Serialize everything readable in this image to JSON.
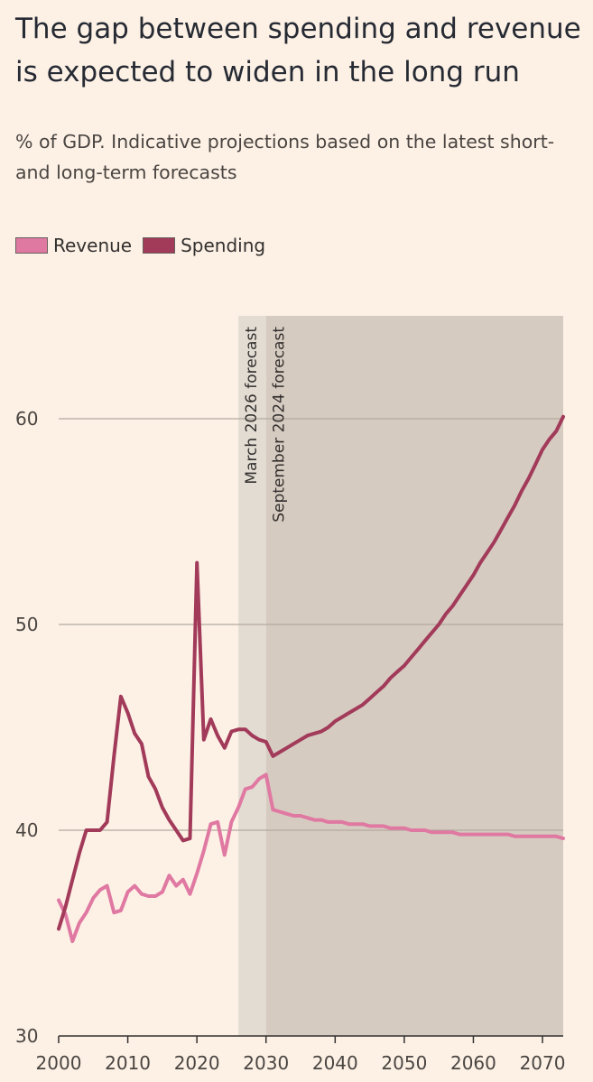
{
  "chart_data": {
    "type": "line",
    "title": "The gap between spending and revenue is expected to widen in the long run",
    "subtitle": "% of GDP. Indicative projections based on the latest short- and long-term forecasts",
    "xlim": [
      2000,
      2073
    ],
    "ylim": [
      30,
      65
    ],
    "x_ticks": [
      2000,
      2010,
      2020,
      2030,
      2040,
      2050,
      2060,
      2070
    ],
    "y_ticks": [
      30,
      40,
      50,
      60
    ],
    "grid": "horizontal",
    "legend_placement": "top-left",
    "shaded_regions": [
      {
        "label": "March 2026 forecast",
        "from": 2026,
        "to": 2030,
        "color": "#e3dcd3"
      },
      {
        "label": "September 2024 forecast",
        "from": 2030,
        "to": 2073,
        "color": "#d6cbc1"
      }
    ],
    "series": [
      {
        "name": "Revenue",
        "color": "#e079a2",
        "points": [
          [
            2000,
            36.6
          ],
          [
            2001,
            35.9
          ],
          [
            2002,
            34.6
          ],
          [
            2003,
            35.5
          ],
          [
            2004,
            36.0
          ],
          [
            2005,
            36.7
          ],
          [
            2006,
            37.1
          ],
          [
            2007,
            37.3
          ],
          [
            2008,
            36.0
          ],
          [
            2009,
            36.1
          ],
          [
            2010,
            37.0
          ],
          [
            2011,
            37.3
          ],
          [
            2012,
            36.9
          ],
          [
            2013,
            36.8
          ],
          [
            2014,
            36.8
          ],
          [
            2015,
            37.0
          ],
          [
            2016,
            37.8
          ],
          [
            2017,
            37.3
          ],
          [
            2018,
            37.6
          ],
          [
            2019,
            36.9
          ],
          [
            2020,
            37.9
          ],
          [
            2021,
            39.0
          ],
          [
            2022,
            40.3
          ],
          [
            2023,
            40.4
          ],
          [
            2024,
            38.8
          ],
          [
            2025,
            40.4
          ],
          [
            2026,
            41.1
          ],
          [
            2027,
            42.0
          ],
          [
            2028,
            42.1
          ],
          [
            2029,
            42.5
          ],
          [
            2030,
            42.7
          ],
          [
            2031,
            41.0
          ],
          [
            2032,
            40.9
          ],
          [
            2033,
            40.8
          ],
          [
            2034,
            40.7
          ],
          [
            2035,
            40.7
          ],
          [
            2036,
            40.6
          ],
          [
            2037,
            40.5
          ],
          [
            2038,
            40.5
          ],
          [
            2039,
            40.4
          ],
          [
            2040,
            40.4
          ],
          [
            2041,
            40.4
          ],
          [
            2042,
            40.3
          ],
          [
            2043,
            40.3
          ],
          [
            2044,
            40.3
          ],
          [
            2045,
            40.2
          ],
          [
            2046,
            40.2
          ],
          [
            2047,
            40.2
          ],
          [
            2048,
            40.1
          ],
          [
            2049,
            40.1
          ],
          [
            2050,
            40.1
          ],
          [
            2051,
            40.0
          ],
          [
            2052,
            40.0
          ],
          [
            2053,
            40.0
          ],
          [
            2054,
            39.9
          ],
          [
            2055,
            39.9
          ],
          [
            2056,
            39.9
          ],
          [
            2057,
            39.9
          ],
          [
            2058,
            39.8
          ],
          [
            2059,
            39.8
          ],
          [
            2060,
            39.8
          ],
          [
            2061,
            39.8
          ],
          [
            2062,
            39.8
          ],
          [
            2063,
            39.8
          ],
          [
            2064,
            39.8
          ],
          [
            2065,
            39.8
          ],
          [
            2066,
            39.7
          ],
          [
            2067,
            39.7
          ],
          [
            2068,
            39.7
          ],
          [
            2069,
            39.7
          ],
          [
            2070,
            39.7
          ],
          [
            2071,
            39.7
          ],
          [
            2072,
            39.7
          ],
          [
            2073,
            39.6
          ]
        ]
      },
      {
        "name": "Spending",
        "color": "#a23a5a",
        "points": [
          [
            2000,
            35.2
          ],
          [
            2001,
            36.3
          ],
          [
            2002,
            37.6
          ],
          [
            2003,
            38.9
          ],
          [
            2004,
            40.0
          ],
          [
            2005,
            40.0
          ],
          [
            2006,
            40.0
          ],
          [
            2007,
            40.4
          ],
          [
            2008,
            43.6
          ],
          [
            2009,
            46.5
          ],
          [
            2010,
            45.7
          ],
          [
            2011,
            44.7
          ],
          [
            2012,
            44.2
          ],
          [
            2013,
            42.6
          ],
          [
            2014,
            42.0
          ],
          [
            2015,
            41.1
          ],
          [
            2016,
            40.5
          ],
          [
            2017,
            40.0
          ],
          [
            2018,
            39.5
          ],
          [
            2019,
            39.6
          ],
          [
            2020,
            53.0
          ],
          [
            2021,
            44.4
          ],
          [
            2022,
            45.4
          ],
          [
            2023,
            44.6
          ],
          [
            2024,
            44.0
          ],
          [
            2025,
            44.8
          ],
          [
            2026,
            44.9
          ],
          [
            2027,
            44.9
          ],
          [
            2028,
            44.6
          ],
          [
            2029,
            44.4
          ],
          [
            2030,
            44.3
          ],
          [
            2031,
            43.6
          ],
          [
            2032,
            43.8
          ],
          [
            2033,
            44.0
          ],
          [
            2034,
            44.2
          ],
          [
            2035,
            44.4
          ],
          [
            2036,
            44.6
          ],
          [
            2037,
            44.7
          ],
          [
            2038,
            44.8
          ],
          [
            2039,
            45.0
          ],
          [
            2040,
            45.3
          ],
          [
            2041,
            45.5
          ],
          [
            2042,
            45.7
          ],
          [
            2043,
            45.9
          ],
          [
            2044,
            46.1
          ],
          [
            2045,
            46.4
          ],
          [
            2046,
            46.7
          ],
          [
            2047,
            47.0
          ],
          [
            2048,
            47.4
          ],
          [
            2049,
            47.7
          ],
          [
            2050,
            48.0
          ],
          [
            2051,
            48.4
          ],
          [
            2052,
            48.8
          ],
          [
            2053,
            49.2
          ],
          [
            2054,
            49.6
          ],
          [
            2055,
            50.0
          ],
          [
            2056,
            50.5
          ],
          [
            2057,
            50.9
          ],
          [
            2058,
            51.4
          ],
          [
            2059,
            51.9
          ],
          [
            2060,
            52.4
          ],
          [
            2061,
            53.0
          ],
          [
            2062,
            53.5
          ],
          [
            2063,
            54.0
          ],
          [
            2064,
            54.6
          ],
          [
            2065,
            55.2
          ],
          [
            2066,
            55.8
          ],
          [
            2067,
            56.5
          ],
          [
            2068,
            57.1
          ],
          [
            2069,
            57.8
          ],
          [
            2070,
            58.5
          ],
          [
            2071,
            59.0
          ],
          [
            2072,
            59.4
          ],
          [
            2073,
            60.1
          ]
        ]
      }
    ]
  }
}
